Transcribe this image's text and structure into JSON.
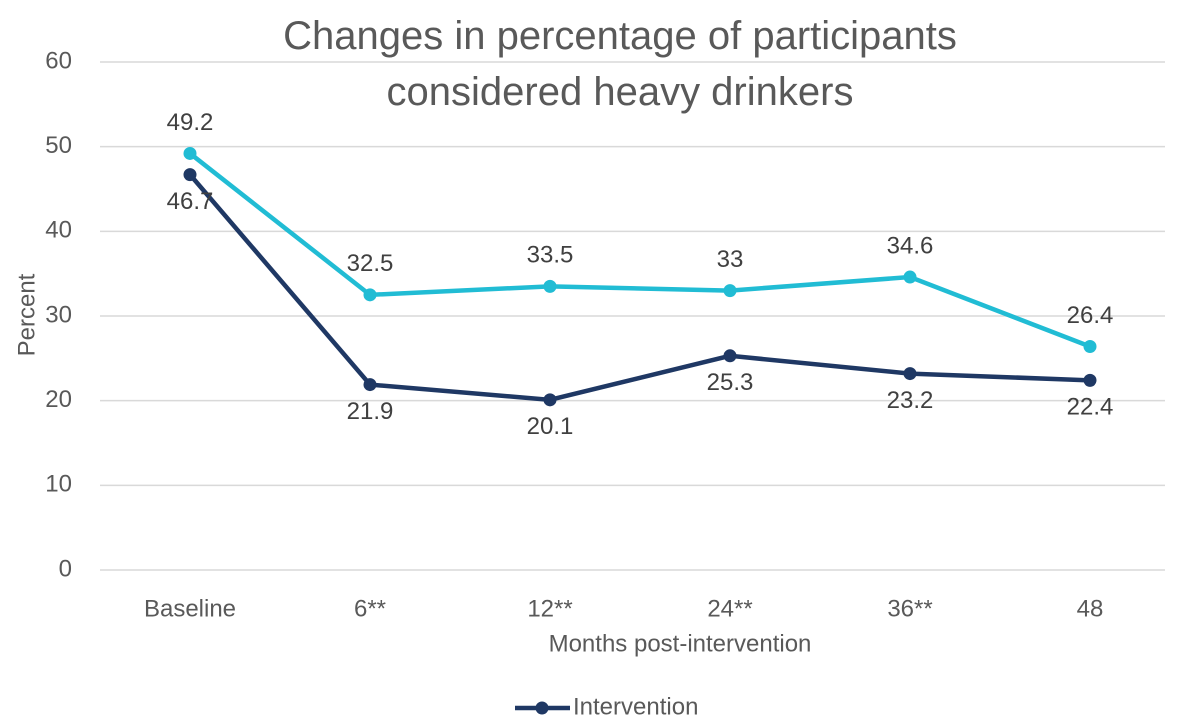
{
  "chart_data": {
    "type": "line",
    "title": "Changes in percentage of participants considered heavy drinkers",
    "x_label": "Months post-intervention",
    "y_label": "Percent",
    "categories": [
      "Baseline",
      "6**",
      "12**",
      "24**",
      "36**",
      "48"
    ],
    "series": [
      {
        "name": "Intervention",
        "color": "#1f3864",
        "values": [
          46.7,
          21.9,
          20.1,
          25.3,
          23.2,
          22.4
        ]
      },
      {
        "color": "#21bcd4",
        "values": [
          49.2,
          32.5,
          33.5,
          33,
          34.6,
          26.4
        ]
      }
    ],
    "ylim": [
      0,
      60
    ],
    "yticks": [
      0,
      10,
      20,
      30,
      40,
      50,
      60
    ],
    "grid": true,
    "legend": "bottom"
  }
}
